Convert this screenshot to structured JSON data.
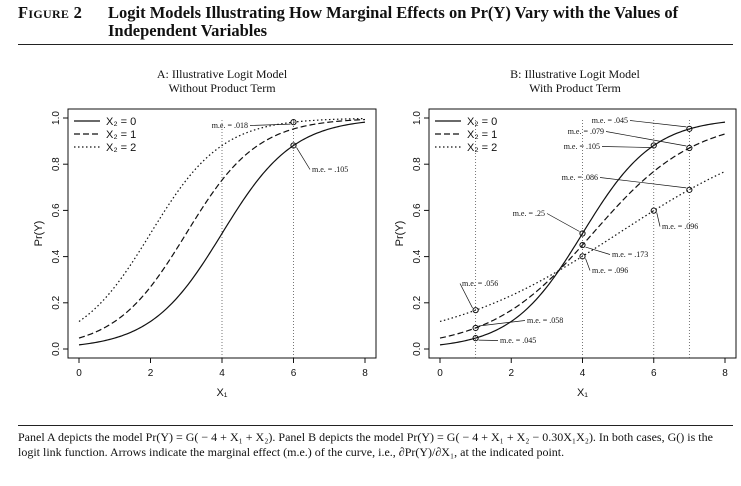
{
  "figure": {
    "label": "Figure 2",
    "title": "Logit Models Illustrating How Marginal Effects on Pr(Y) Vary with the Values of Independent Variables",
    "caption": "Panel A depicts the model Pr(Y) = G( − 4 + X₁ + X₂). Panel B depicts the model Pr(Y) = G( − 4 + X₁ + X₂ − 0.30X₁X₂). In both cases, G() is the logit link function. Arrows indicate the marginal effect (m.e.) of the curve, i.e., ∂Pr(Y)/∂X₁, at the indicated point."
  },
  "chart_data": [
    {
      "type": "line",
      "title_line1": "A: Illustrative Logit Model",
      "title_line2": "Without Product Term",
      "xlabel": "X₁",
      "ylabel": "Pr(Y)",
      "xlim": [
        0,
        8
      ],
      "ylim": [
        0,
        1
      ],
      "xticks": [
        "0",
        "2",
        "4",
        "6",
        "8"
      ],
      "yticks": [
        "0.0",
        "0.2",
        "0.4",
        "0.6",
        "0.8",
        "1.0"
      ],
      "model": {
        "b0": -4,
        "b1": 1,
        "b2": 1,
        "b12": 0
      },
      "legend": {
        "position": "top-left",
        "entries": [
          "X₂ = 0",
          "X₂ = 1",
          "X₂ = 2"
        ]
      },
      "series": [
        {
          "name": "X₂ = 0",
          "x2": 0,
          "dash": "solid"
        },
        {
          "name": "X₂ = 1",
          "x2": 1,
          "dash": "dashed"
        },
        {
          "name": "X₂ = 2",
          "x2": 2,
          "dash": "dotted"
        }
      ],
      "annotations": [
        {
          "x": 6,
          "y": 0.982,
          "label": "m.e. = .018"
        },
        {
          "x": 6,
          "y": 0.881,
          "label": "m.e. = .105"
        }
      ],
      "guides": [
        4,
        6
      ]
    },
    {
      "type": "line",
      "title_line1": "B: Illustrative Logit Model",
      "title_line2": "With Product Term",
      "xlabel": "X₁",
      "ylabel": "Pr(Y)",
      "xlim": [
        0,
        8
      ],
      "ylim": [
        0,
        1
      ],
      "xticks": [
        "0",
        "2",
        "4",
        "6",
        "8"
      ],
      "yticks": [
        "0.0",
        "0.2",
        "0.4",
        "0.6",
        "0.8",
        "1.0"
      ],
      "model": {
        "b0": -4,
        "b1": 1,
        "b2": 1,
        "b12": -0.3
      },
      "legend": {
        "position": "top-left",
        "entries": [
          "X₂ = 0",
          "X₂ = 1",
          "X₂ = 2"
        ]
      },
      "series": [
        {
          "name": "X₂ = 0",
          "x2": 0,
          "dash": "solid"
        },
        {
          "name": "X₂ = 1",
          "x2": 1,
          "dash": "dashed"
        },
        {
          "name": "X₂ = 2",
          "x2": 2,
          "dash": "dotted"
        }
      ],
      "annotations": [
        {
          "x": 7,
          "y": 0.953,
          "label": "m.e. = .045"
        },
        {
          "x": 7,
          "y": 0.87,
          "label": "m.e. = .079"
        },
        {
          "x": 6,
          "y": 0.881,
          "label": "m.e. = .105"
        },
        {
          "x": 7,
          "y": 0.689,
          "label": "m.e. = .086"
        },
        {
          "x": 6,
          "y": 0.599,
          "label": "m.e. = .096"
        },
        {
          "x": 4,
          "y": 0.5,
          "label": "m.e. = .25"
        },
        {
          "x": 4,
          "y": 0.45,
          "label": "m.e. = .173"
        },
        {
          "x": 4,
          "y": 0.401,
          "label": "m.e. = .096"
        },
        {
          "x": 1,
          "y": 0.168,
          "label": "m.e. = .056"
        },
        {
          "x": 1,
          "y": 0.091,
          "label": "m.e. = .058"
        },
        {
          "x": 1,
          "y": 0.047,
          "label": "m.e. = .045"
        }
      ],
      "guides": [
        1,
        4,
        6,
        7
      ]
    }
  ]
}
